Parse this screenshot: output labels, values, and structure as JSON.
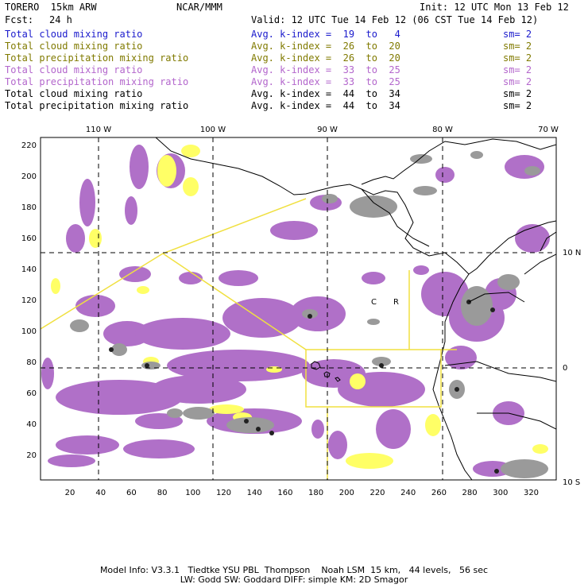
{
  "header": {
    "title_left": "TORERO  15km ARW",
    "title_center": "NCAR/MMM",
    "init": "Init: 12 UTC Mon 13 Feb 12",
    "fcst_label": "Fcst:",
    "fcst_value": "24 h",
    "valid": "Valid: 12 UTC Tue 14 Feb 12 (06 CST Tue 14 Feb 12)"
  },
  "legend_rows": [
    {
      "field": "Total cloud mixing ratio",
      "kidx": "Avg. k-index =  19  to   4",
      "sm": "sm= 2",
      "color": "#1a1acc"
    },
    {
      "field": "Total cloud mixing ratio",
      "kidx": "Avg. k-index =  26  to  20",
      "sm": "sm= 2",
      "color": "#807a00"
    },
    {
      "field": "Total precipitation mixing ratio",
      "kidx": "Avg. k-index =  26  to  20",
      "sm": "sm= 2",
      "color": "#807a00"
    },
    {
      "field": "Total cloud mixing ratio",
      "kidx": "Avg. k-index =  33  to  25",
      "sm": "sm= 2",
      "color": "#b366cc"
    },
    {
      "field": "Total precipitation mixing ratio",
      "kidx": "Avg. k-index =  33  to  25",
      "sm": "sm= 2",
      "color": "#b366cc"
    },
    {
      "field": "Total cloud mixing ratio",
      "kidx": "Avg. k-index =  44  to  34",
      "sm": "sm= 2",
      "color": "#000000"
    },
    {
      "field": "Total precipitation mixing ratio",
      "kidx": "Avg. k-index =  44  to  34",
      "sm": "sm= 2",
      "color": "#000000"
    }
  ],
  "map": {
    "top_ticks": [
      "110 W",
      "100 W",
      "90 W",
      "80 W",
      "70 W"
    ],
    "left_ticks": [
      "220",
      "200",
      "180",
      "160",
      "140",
      "120",
      "100",
      "80",
      "60",
      "40",
      "20"
    ],
    "bottom_ticks": [
      "20",
      "40",
      "60",
      "80",
      "100",
      "120",
      "140",
      "160",
      "180",
      "200",
      "220",
      "240",
      "260",
      "280",
      "300",
      "320"
    ],
    "right_ticks": [
      "10 N",
      "0",
      "10 S"
    ],
    "region_letters": [
      "C",
      "R"
    ],
    "colors": {
      "cloud_purple": "#b070c8",
      "precip_yellow": "#ffff66",
      "gray": "#9a9a9a",
      "boundary_yellow": "#f0e040"
    }
  },
  "footer": {
    "line1": "Model Info: V3.3.1   Tiedtke YSU PBL  Thompson    Noah LSM  15 km,   44 levels,   56 sec",
    "line2": "LW: Godd SW: Goddard DIFF: simple KM: 2D Smagor"
  }
}
